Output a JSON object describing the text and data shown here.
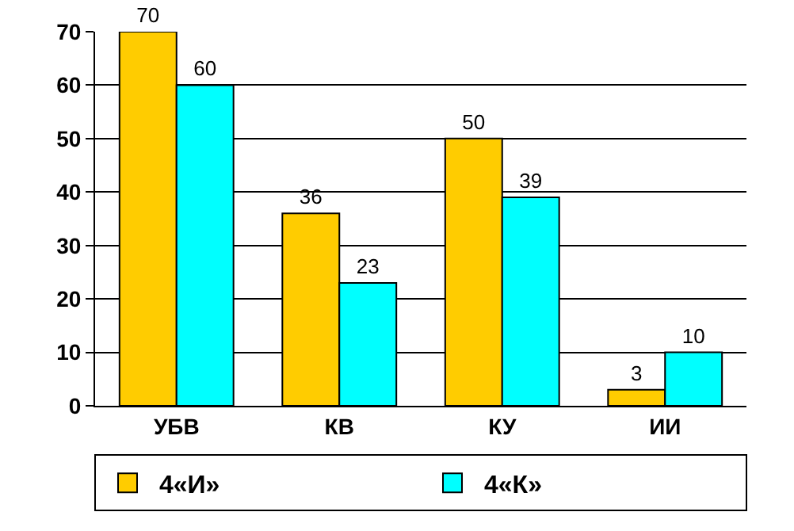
{
  "chart_data": {
    "type": "bar",
    "categories": [
      "УБВ",
      "КВ",
      "КУ",
      "ИИ"
    ],
    "series": [
      {
        "name": "4«И»",
        "color": "#ffcc00",
        "values": [
          70,
          36,
          50,
          3
        ]
      },
      {
        "name": "4«К»",
        "color": "#00ffff",
        "values": [
          60,
          23,
          39,
          10
        ]
      }
    ],
    "ylim": [
      0,
      70
    ],
    "yticks": [
      0,
      10,
      20,
      30,
      40,
      50,
      60,
      70
    ],
    "grid": "y",
    "legend": "bottom",
    "data_labels": true
  }
}
